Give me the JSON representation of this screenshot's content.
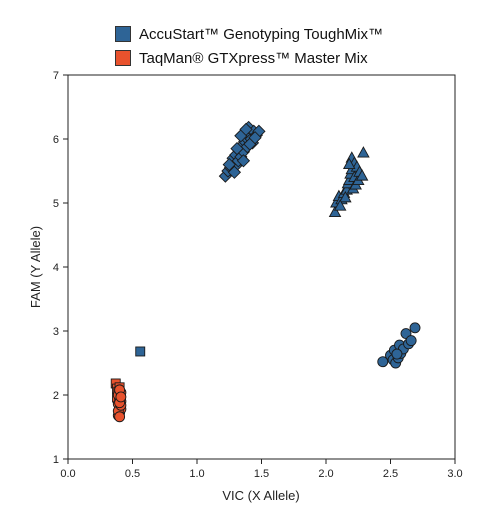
{
  "legend": {
    "items": [
      {
        "label": "AccuStart™ Genotyping ToughMix™",
        "color": "#2e6496"
      },
      {
        "label": "TaqMan® GTXpress™ Master Mix",
        "color": "#e8522d"
      }
    ]
  },
  "chart_data": {
    "type": "scatter",
    "xlabel": "VIC (X Allele)",
    "ylabel": "FAM (Y Allele)",
    "xlim": [
      0,
      3
    ],
    "ylim": [
      1,
      7
    ],
    "xticks": [
      "0.0",
      "0.5",
      "1.0",
      "1.5",
      "2.0",
      "2.5",
      "3.0"
    ],
    "yticks": [
      "1",
      "2",
      "3",
      "4",
      "5",
      "6",
      "7"
    ],
    "grid": false,
    "legend_position": "top",
    "series": [
      {
        "name": "AccuStart™ Genotyping ToughMix™",
        "color": "#2e6496",
        "groups": [
          {
            "marker": "diamond",
            "points": [
              [
                1.22,
                5.42
              ],
              [
                1.24,
                5.5
              ],
              [
                1.26,
                5.55
              ],
              [
                1.27,
                5.62
              ],
              [
                1.28,
                5.7
              ],
              [
                1.3,
                5.58
              ],
              [
                1.3,
                5.75
              ],
              [
                1.32,
                5.66
              ],
              [
                1.33,
                5.82
              ],
              [
                1.34,
                5.72
              ],
              [
                1.35,
                5.9
              ],
              [
                1.36,
                5.8
              ],
              [
                1.37,
                5.96
              ],
              [
                1.38,
                6.02
              ],
              [
                1.39,
                5.88
              ],
              [
                1.4,
                6.08
              ],
              [
                1.4,
                6.18
              ],
              [
                1.42,
                6.0
              ],
              [
                1.43,
                5.94
              ],
              [
                1.44,
                6.12
              ],
              [
                1.46,
                6.06
              ],
              [
                1.48,
                6.12
              ],
              [
                1.25,
                5.6
              ],
              [
                1.29,
                5.48
              ],
              [
                1.31,
                5.85
              ],
              [
                1.34,
                6.05
              ],
              [
                1.36,
                5.66
              ],
              [
                1.38,
                6.15
              ],
              [
                1.41,
                5.92
              ],
              [
                1.45,
                6.02
              ]
            ]
          },
          {
            "marker": "triangle",
            "points": [
              [
                2.07,
                4.85
              ],
              [
                2.08,
                5.0
              ],
              [
                2.1,
                5.1
              ],
              [
                2.12,
                5.05
              ],
              [
                2.14,
                5.15
              ],
              [
                2.16,
                5.2
              ],
              [
                2.17,
                5.3
              ],
              [
                2.18,
                5.35
              ],
              [
                2.19,
                5.45
              ],
              [
                2.2,
                5.52
              ],
              [
                2.2,
                5.7
              ],
              [
                2.21,
                5.22
              ],
              [
                2.22,
                5.4
              ],
              [
                2.22,
                5.62
              ],
              [
                2.23,
                5.28
              ],
              [
                2.24,
                5.56
              ],
              [
                2.25,
                5.35
              ],
              [
                2.26,
                5.48
              ],
              [
                2.28,
                5.42
              ],
              [
                2.29,
                5.78
              ],
              [
                2.15,
                5.08
              ],
              [
                2.18,
                5.6
              ],
              [
                2.11,
                4.95
              ]
            ]
          },
          {
            "marker": "circle",
            "points": [
              [
                2.44,
                2.52
              ],
              [
                2.5,
                2.62
              ],
              [
                2.52,
                2.55
              ],
              [
                2.53,
                2.7
              ],
              [
                2.54,
                2.5
              ],
              [
                2.56,
                2.58
              ],
              [
                2.57,
                2.78
              ],
              [
                2.58,
                2.65
              ],
              [
                2.6,
                2.72
              ],
              [
                2.62,
                2.96
              ],
              [
                2.64,
                2.8
              ],
              [
                2.66,
                2.85
              ],
              [
                2.69,
                3.05
              ],
              [
                2.55,
                2.64
              ]
            ]
          },
          {
            "marker": "square",
            "points": [
              [
                0.56,
                2.68
              ]
            ]
          }
        ]
      },
      {
        "name": "TaqMan® GTXpress™ Master Mix",
        "color": "#e8522d",
        "groups": [
          {
            "marker": "square",
            "points": [
              [
                0.37,
                2.18
              ],
              [
                0.38,
                2.1
              ],
              [
                0.4,
                2.12
              ],
              [
                0.39,
                2.05
              ],
              [
                0.41,
                2.0
              ],
              [
                0.38,
                1.96
              ],
              [
                0.4,
                1.92
              ]
            ]
          },
          {
            "marker": "circle",
            "points": [
              [
                0.39,
                1.68
              ],
              [
                0.4,
                1.72
              ],
              [
                0.41,
                1.78
              ],
              [
                0.4,
                1.82
              ],
              [
                0.39,
                1.86
              ],
              [
                0.41,
                1.9
              ],
              [
                0.4,
                1.95
              ],
              [
                0.39,
                2.0
              ],
              [
                0.41,
                2.04
              ],
              [
                0.4,
                2.08
              ],
              [
                0.39,
                1.75
              ],
              [
                0.41,
                1.84
              ],
              [
                0.4,
                1.66
              ],
              [
                0.4,
                1.88
              ],
              [
                0.41,
                1.97
              ]
            ]
          }
        ]
      }
    ]
  }
}
